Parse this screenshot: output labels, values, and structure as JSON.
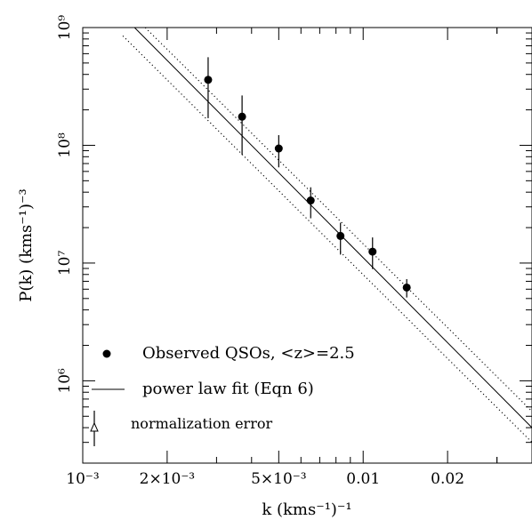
{
  "chart_data": {
    "type": "scatter",
    "xlabel": "k (kms⁻¹)⁻¹",
    "ylabel": "P(k) (kms⁻¹)⁻³",
    "x_scale": "log",
    "y_scale": "log",
    "xlim": [
      0.001,
      0.04
    ],
    "ylim": [
      200000,
      1000000000
    ],
    "x_ticks": [
      {
        "value": 0.001,
        "label": "10⁻³"
      },
      {
        "value": 0.002,
        "label": "2×10⁻³"
      },
      {
        "value": 0.005,
        "label": "5×10⁻³"
      },
      {
        "value": 0.01,
        "label": "0.01"
      },
      {
        "value": 0.02,
        "label": "0.02"
      }
    ],
    "y_ticks": [
      {
        "value": 1000000,
        "label": "10⁶"
      },
      {
        "value": 10000000,
        "label": "10⁷"
      },
      {
        "value": 100000000,
        "label": "10⁸"
      },
      {
        "value": 1000000000,
        "label": "10⁹"
      }
    ],
    "series": [
      {
        "name": "Observed QSOs, <z>=2.5",
        "marker": "filled-circle",
        "points": [
          {
            "x": 0.0028,
            "y": 360000000,
            "ylow": 170000000,
            "yhigh": 560000000
          },
          {
            "x": 0.0037,
            "y": 175000000,
            "ylow": 83000000,
            "yhigh": 265000000
          },
          {
            "x": 0.005,
            "y": 94000000,
            "ylow": 65000000,
            "yhigh": 122000000
          },
          {
            "x": 0.0065,
            "y": 34000000,
            "ylow": 24000000,
            "yhigh": 44000000
          },
          {
            "x": 0.0083,
            "y": 17000000,
            "ylow": 11800000,
            "yhigh": 22000000
          },
          {
            "x": 0.0108,
            "y": 12500000,
            "ylow": 8900000,
            "yhigh": 16500000
          },
          {
            "x": 0.0143,
            "y": 6200000,
            "ylow": 5100000,
            "yhigh": 7300000
          }
        ]
      },
      {
        "name": "power law fit (Eqn 6)",
        "style": "solid",
        "line": [
          [
            0.00153,
            1000000000
          ],
          [
            0.04,
            400000
          ]
        ]
      },
      {
        "style": "dotted",
        "line": [
          [
            0.00167,
            1000000000
          ],
          [
            0.04,
            550000
          ]
        ]
      },
      {
        "style": "dotted",
        "line": [
          [
            0.00139,
            850000000
          ],
          [
            0.04,
            300000
          ]
        ]
      }
    ],
    "legend": {
      "placement": "bottom-left",
      "entries": [
        {
          "label": "Observed QSOs, <z>=2.5",
          "symbol": "filled-circle"
        },
        {
          "label": "power law fit (Eqn 6)",
          "symbol": "solid-line"
        },
        {
          "label": "normalization error",
          "symbol": "triangle-errorbar"
        }
      ]
    },
    "grid": false
  }
}
